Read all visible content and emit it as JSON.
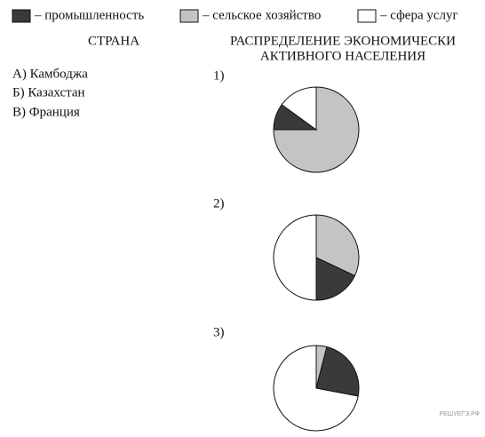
{
  "legend": {
    "items": [
      {
        "label": "– промышленность",
        "color": "#3a3a3a"
      },
      {
        "label": "– сельское хозяйство",
        "color": "#c4c4c4"
      },
      {
        "label": "– сфера услуг",
        "color": "#ffffff"
      }
    ]
  },
  "columns": {
    "left": "СТРАНА",
    "right": [
      "РАСПРЕДЕЛЕНИЕ ЭКОНОМИЧЕСКИ",
      "АКТИВНОГО НАСЕЛЕНИЯ"
    ]
  },
  "countries": [
    "А) Камбоджа",
    "Б) Казахстан",
    "В) Франция"
  ],
  "chart_data": [
    {
      "type": "pie",
      "label": "1)",
      "values": [
        10,
        75,
        15
      ]
    },
    {
      "type": "pie",
      "label": "2)",
      "values": [
        18,
        32,
        50
      ]
    },
    {
      "type": "pie",
      "label": "3)",
      "values": [
        24,
        4,
        72
      ]
    }
  ],
  "watermark": "РЕШУЕГЭ.РФ"
}
